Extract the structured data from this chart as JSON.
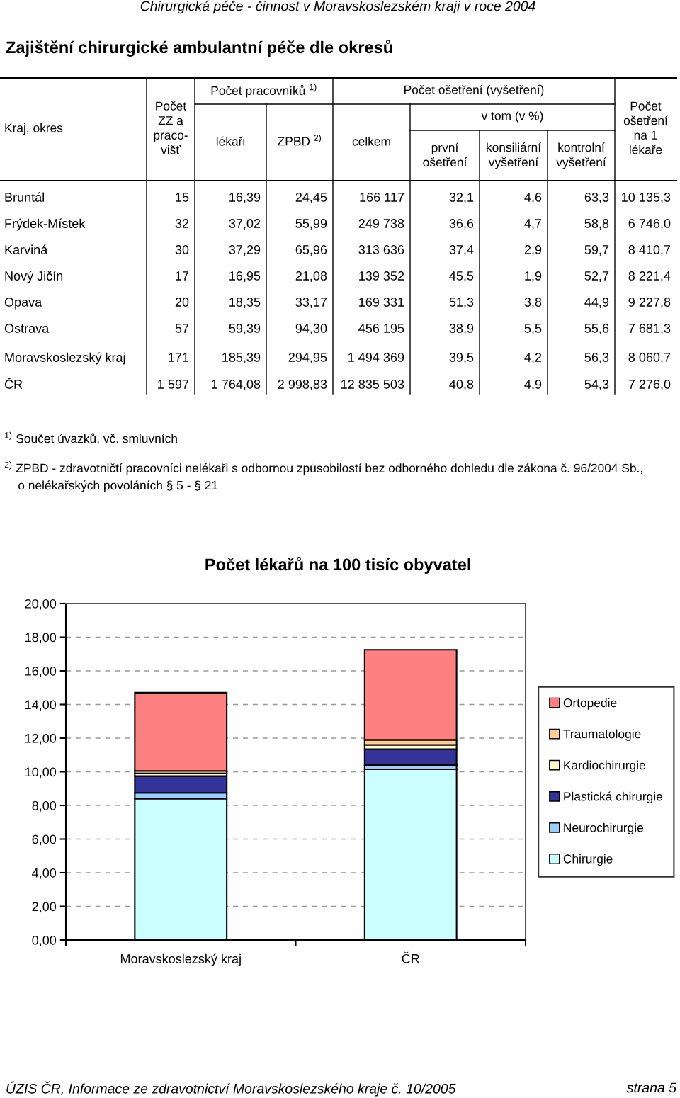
{
  "chart_data": [
    {
      "type": "other",
      "title": "Zajištění chirurgické ambulantní péče dle okresů",
      "ylabel": "Kraj, okres",
      "categories": [
        "Počet\nZZ a\npraco-\nvišť",
        "lékaři",
        "ZPBD $^{2)}$",
        "celkem",
        "první\nošetření",
        "konsiliární\nvyšetření",
        "kontrolní\nvyšetření",
        "Počet\nošetření\nna 1\nlékaře"
      ],
      "y_categories": [
        "Bruntál",
        "Frýdek-Místek",
        "Karviná",
        "Nový Jičín",
        "Opava",
        "Ostrava",
        "Moravskoslezský kraj",
        "ČR"
      ],
      "cell_labels": [
        [
          "15",
          "16,39",
          "24,45",
          "166 117",
          "32,1",
          "4,6",
          "63,3",
          "10 135,3"
        ],
        [
          "32",
          "37,02",
          "55,99",
          "249 738",
          "36,6",
          "4,7",
          "58,8",
          "6 746,0"
        ],
        [
          "30",
          "37,29",
          "65,96",
          "313 636",
          "37,4",
          "2,9",
          "59,7",
          "8 410,7"
        ],
        [
          "17",
          "16,95",
          "21,08",
          "139 352",
          "45,5",
          "1,9",
          "52,7",
          "8 221,4"
        ],
        [
          "20",
          "18,35",
          "33,17",
          "169 331",
          "51,3",
          "3,8",
          "44,9",
          "9 227,8"
        ],
        [
          "57",
          "59,39",
          "94,30",
          "456 195",
          "38,9",
          "5,5",
          "55,6",
          "7 681,3"
        ],
        [
          "171",
          "185,39",
          "294,95",
          "1 494 369",
          "39,5",
          "4,2",
          "56,3",
          "8 060,7"
        ],
        [
          "1 597",
          "1 764,08",
          "2 998,83",
          "12 835 503",
          "40,8",
          "4,9",
          "54,3",
          "7 276,0"
        ]
      ],
      "annotations": [
        "Počet pracovníků $^{1)}$",
        "Počet ošetření (vyšetření)",
        "v tom (v %)",
        "$^{1)}$ Součet úvazků, vč. smluvních",
        "$^{2)}$ ZPBD - zdravotničtí pracovníci nelékaři s odbornou způsobilostí bez odborného dohledu dle zákona č. 96/2004 Sb.,\n    o nelékařských povoláních § 5 - § 21",
        "Chirurgická péče - činnost v Moravskoslezském kraji v roce 2004",
        "ÚZIS ČR, Informace ze zdravotnictví Moravskoslezského kraje č. 10/2005",
        "strana 5"
      ]
    },
    {
      "type": "bar",
      "title": "Počet lékařů na 100 tisíc obyvatel",
      "stacked": true,
      "grid": "y",
      "legend": "right",
      "categories": [
        "Moravskoslezský kraj",
        "ČR"
      ],
      "ylim": [
        0,
        20
      ],
      "yticks": [
        {
          "value": 0,
          "label": "0,00"
        },
        {
          "value": 2,
          "label": "2,00"
        },
        {
          "value": 4,
          "label": "4,00"
        },
        {
          "value": 6,
          "label": "6,00"
        },
        {
          "value": 8,
          "label": "8,00"
        },
        {
          "value": 10,
          "label": "10,00"
        },
        {
          "value": 12,
          "label": "12,00"
        },
        {
          "value": 14,
          "label": "14,00"
        },
        {
          "value": 16,
          "label": "16,00"
        },
        {
          "value": 18,
          "label": "18,00"
        },
        {
          "value": 20,
          "label": "20,00"
        }
      ],
      "series": [
        {
          "name": "Chirurgie",
          "color": "#ccffff",
          "values": [
            8.4,
            10.15
          ]
        },
        {
          "name": "Neurochirurgie",
          "color": "#99ccff",
          "values": [
            0.35,
            0.25
          ]
        },
        {
          "name": "Plastická chirurgie",
          "color": "#333399",
          "values": [
            1.0,
            0.95
          ]
        },
        {
          "name": "Kardiochirurgie",
          "color": "#ffffcc",
          "values": [
            0.15,
            0.25
          ]
        },
        {
          "name": "Traumatologie",
          "color": "#ffcc99",
          "values": [
            0.15,
            0.3
          ]
        },
        {
          "name": "Ortopedie",
          "color": "#ff8080",
          "values": [
            4.65,
            5.35
          ]
        }
      ]
    }
  ]
}
